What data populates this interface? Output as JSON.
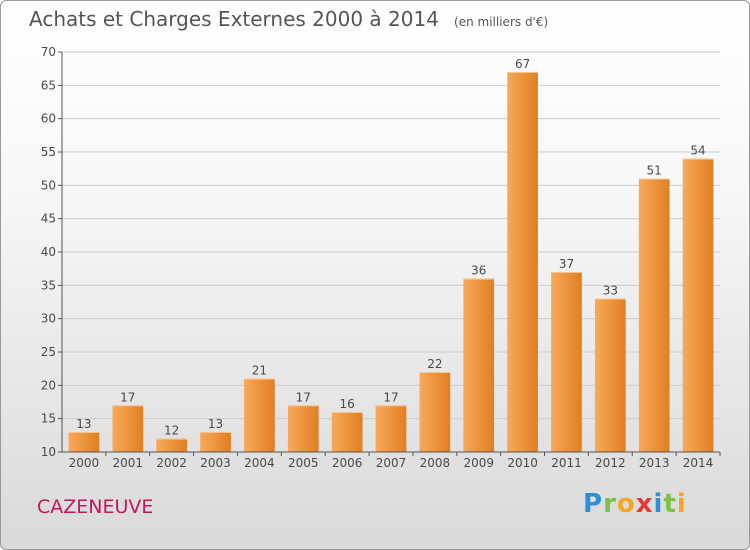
{
  "title": "Achats et Charges Externes 2000 à 2014",
  "subtitle": "(en milliers d'€)",
  "place": "CAZENEUVE",
  "logo": {
    "text": "Proxiti",
    "letters": [
      {
        "ch": "P",
        "color": "#2e8fd6"
      },
      {
        "ch": "r",
        "color": "#7cc242"
      },
      {
        "ch": "o",
        "color": "#f5a623"
      },
      {
        "ch": "x",
        "color": "#e53935"
      },
      {
        "ch": "i",
        "color": "#2e8fd6"
      },
      {
        "ch": "t",
        "color": "#7cc242"
      },
      {
        "ch": "i",
        "color": "#f5a623"
      }
    ]
  },
  "colors": {
    "bar_light": "#f8a95a",
    "bar_dark": "#e07f22",
    "grid": "#cccccc",
    "axis": "#555555"
  },
  "chart_data": {
    "type": "bar",
    "categories": [
      "2000",
      "2001",
      "2002",
      "2003",
      "2004",
      "2005",
      "2006",
      "2007",
      "2008",
      "2009",
      "2010",
      "2011",
      "2012",
      "2013",
      "2014"
    ],
    "values": [
      13,
      17,
      12,
      13,
      21,
      17,
      16,
      17,
      22,
      36,
      67,
      37,
      33,
      51,
      54
    ],
    "ylim": [
      10,
      70
    ],
    "yticks": [
      10,
      15,
      20,
      25,
      30,
      35,
      40,
      45,
      50,
      55,
      60,
      65,
      70
    ],
    "grid": true,
    "data_labels": true
  }
}
